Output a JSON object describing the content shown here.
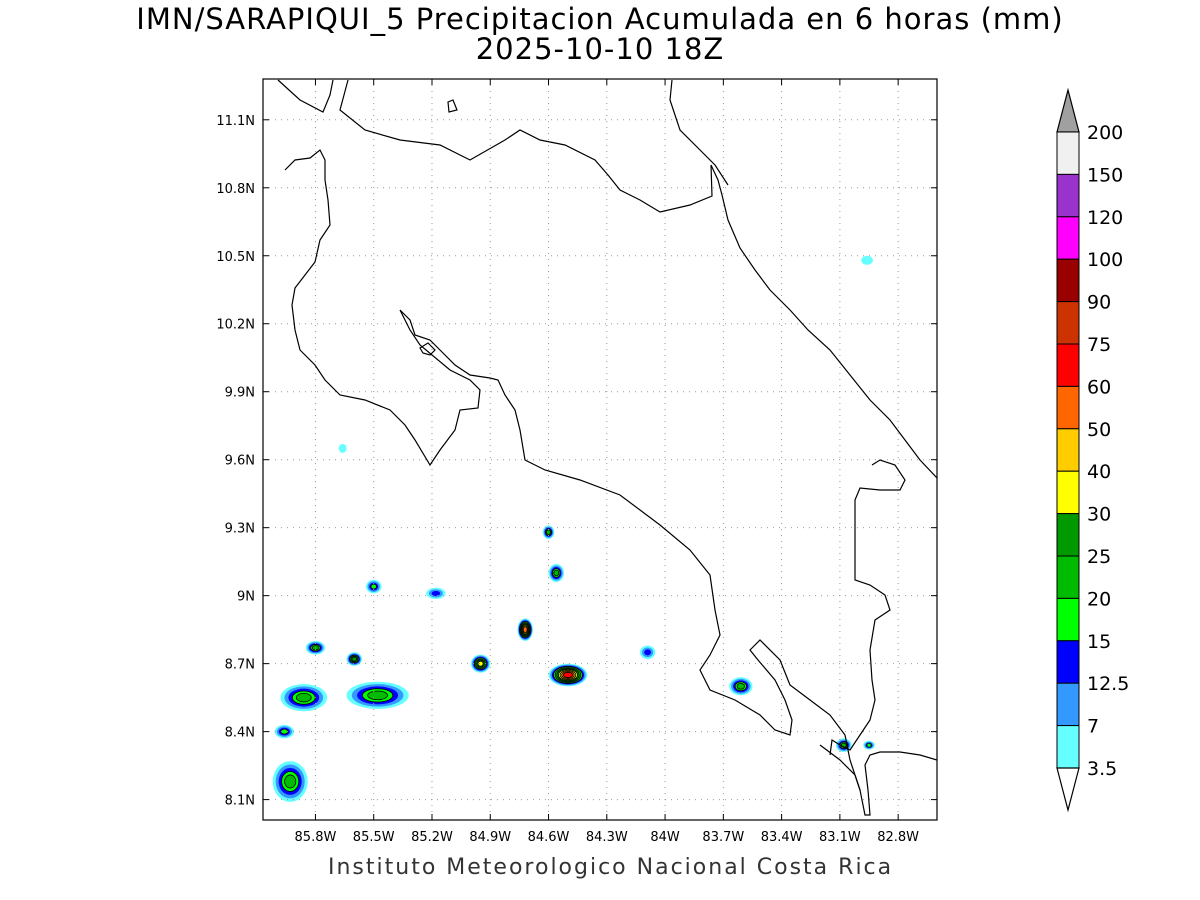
{
  "title": "IMN/SARAPIQUI_5 Precipitacion Acumulada en 6 horas (mm)",
  "subtitle": "2025-10-10 18Z",
  "footer": "Instituto Meteorologico Nacional Costa Rica",
  "axes": {
    "lat_labels": [
      "11.1N",
      "10.8N",
      "10.5N",
      "10.2N",
      "9.9N",
      "9.6N",
      "9.3N",
      "9N",
      "8.7N",
      "8.4N",
      "8.1N"
    ],
    "lat_values": [
      11.1,
      10.8,
      10.5,
      10.2,
      9.9,
      9.6,
      9.3,
      9.0,
      8.7,
      8.4,
      8.1
    ],
    "lon_labels": [
      "85.8W",
      "85.5W",
      "85.2W",
      "84.9W",
      "84.6W",
      "84.3W",
      "84W",
      "83.7W",
      "83.4W",
      "83.1W",
      "82.8W"
    ],
    "lon_values": [
      -85.8,
      -85.5,
      -85.2,
      -84.9,
      -84.6,
      -84.3,
      -84.0,
      -83.7,
      -83.4,
      -83.1,
      -82.8
    ],
    "lon_range": [
      -86.07,
      -82.6
    ],
    "lat_range": [
      8.01,
      11.28
    ],
    "grid": true
  },
  "colorbar": {
    "levels": [
      "200",
      "150",
      "120",
      "100",
      "90",
      "75",
      "60",
      "50",
      "40",
      "30",
      "25",
      "20",
      "15",
      "12.5",
      "7",
      "3.5"
    ],
    "colors": [
      "#f0f0f0",
      "#9933cc",
      "#ff00ff",
      "#990000",
      "#cc3300",
      "#ff0000",
      "#ff6600",
      "#ffcc00",
      "#ffff00",
      "#009900",
      "#00bb00",
      "#00ff00",
      "#0000ff",
      "#3399ff",
      "#66ffff"
    ],
    "top_arrow_color": "#a0a0a0",
    "bottom_arrow_color": "#ffffff"
  },
  "rain_cells": [
    {
      "lon": -85.93,
      "lat": 8.18,
      "rx": 0.09,
      "ry": 0.09,
      "max": "25"
    },
    {
      "lon": -85.86,
      "lat": 8.55,
      "rx": 0.12,
      "ry": 0.06,
      "max": "25"
    },
    {
      "lon": -85.96,
      "lat": 8.4,
      "rx": 0.05,
      "ry": 0.03,
      "max": "20"
    },
    {
      "lon": -85.8,
      "lat": 8.77,
      "rx": 0.05,
      "ry": 0.03,
      "max": "25"
    },
    {
      "lon": -85.48,
      "lat": 8.56,
      "rx": 0.16,
      "ry": 0.06,
      "max": "25"
    },
    {
      "lon": -85.6,
      "lat": 8.72,
      "rx": 0.04,
      "ry": 0.03,
      "max": "30"
    },
    {
      "lon": -85.5,
      "lat": 9.04,
      "rx": 0.04,
      "ry": 0.03,
      "max": "20"
    },
    {
      "lon": -85.18,
      "lat": 9.01,
      "rx": 0.05,
      "ry": 0.025,
      "max": "15"
    },
    {
      "lon": -84.95,
      "lat": 8.7,
      "rx": 0.05,
      "ry": 0.04,
      "max": "40"
    },
    {
      "lon": -84.72,
      "lat": 8.85,
      "rx": 0.04,
      "ry": 0.05,
      "max": "60"
    },
    {
      "lon": -84.5,
      "lat": 8.65,
      "rx": 0.1,
      "ry": 0.05,
      "max": "75"
    },
    {
      "lon": -84.6,
      "lat": 9.28,
      "rx": 0.03,
      "ry": 0.03,
      "max": "25"
    },
    {
      "lon": -84.56,
      "lat": 9.1,
      "rx": 0.04,
      "ry": 0.04,
      "max": "25"
    },
    {
      "lon": -84.09,
      "lat": 8.75,
      "rx": 0.04,
      "ry": 0.03,
      "max": "15"
    },
    {
      "lon": -83.61,
      "lat": 8.6,
      "rx": 0.06,
      "ry": 0.04,
      "max": "25"
    },
    {
      "lon": -83.08,
      "lat": 8.34,
      "rx": 0.04,
      "ry": 0.03,
      "max": "25"
    },
    {
      "lon": -82.95,
      "lat": 8.34,
      "rx": 0.03,
      "ry": 0.02,
      "max": "20"
    },
    {
      "lon": -82.96,
      "lat": 10.48,
      "rx": 0.03,
      "ry": 0.02,
      "max": "7"
    },
    {
      "lon": -85.66,
      "lat": 9.65,
      "rx": 0.02,
      "ry": 0.02,
      "max": "7"
    }
  ]
}
